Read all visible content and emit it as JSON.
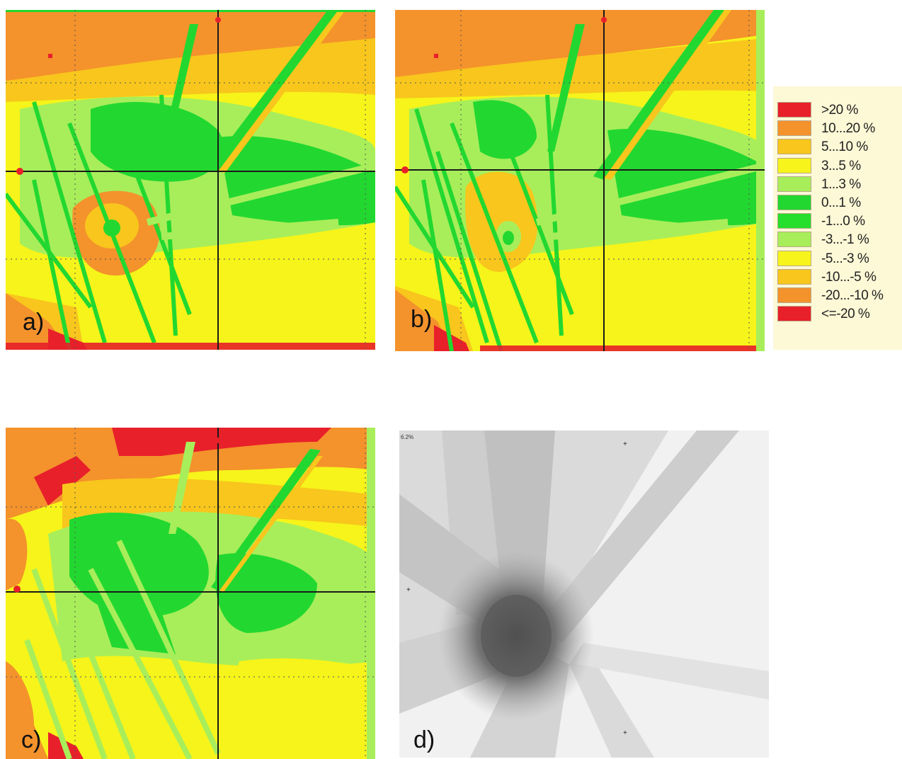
{
  "panels": [
    {
      "id": "a",
      "label": "a)"
    },
    {
      "id": "b",
      "label": "b)"
    },
    {
      "id": "c",
      "label": "c)"
    },
    {
      "id": "d",
      "label": "d)",
      "small_text": "6.2%"
    }
  ],
  "legend": {
    "entries": [
      {
        "label": ">20 %",
        "color": "#e8202a"
      },
      {
        "label": "10...20 %",
        "color": "#f4922c"
      },
      {
        "label": "5...10 %",
        "color": "#f8c61c"
      },
      {
        "label": "3...5 %",
        "color": "#f6f41a"
      },
      {
        "label": "1...3 %",
        "color": "#a8ee5a"
      },
      {
        "label": "0...1 %",
        "color": "#22d830"
      },
      {
        "label": "-1...0 %",
        "color": "#26de2c"
      },
      {
        "label": "-3...-1 %",
        "color": "#a8ee5a"
      },
      {
        "label": "-5...-3 %",
        "color": "#f6f41a"
      },
      {
        "label": "-10...-5 %",
        "color": "#f8c61c"
      },
      {
        "label": "-20...-10 %",
        "color": "#f4922c"
      },
      {
        "label": "<=-20 %",
        "color": "#e8202a"
      }
    ]
  },
  "colors": {
    "red": "#e8202a",
    "orange": "#f4922c",
    "amber": "#f8c61c",
    "yellow": "#f6f41a",
    "light_green": "#a8ee5a",
    "green": "#22d830",
    "crosshair": "#1a1a1a",
    "grid_dots": "#555555"
  }
}
